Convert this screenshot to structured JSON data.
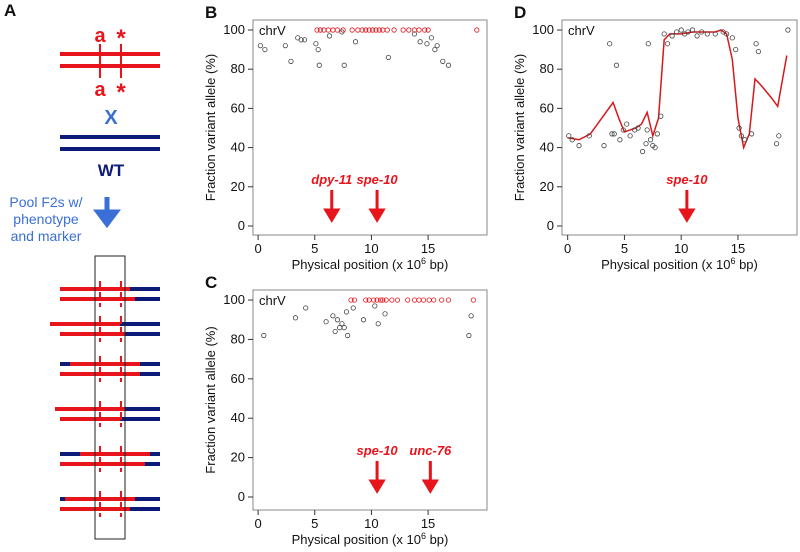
{
  "diagram": {
    "panel": "A",
    "top_labels": [
      "a",
      "*"
    ],
    "bottom_labels": [
      "a",
      "*"
    ],
    "cross": "X",
    "wt": "WT",
    "pool_lines": [
      "Pool F2s w/",
      "phenotype",
      "and marker"
    ]
  },
  "chart_data": [
    {
      "type": "scatter",
      "panel": "B",
      "chromosome": "chrV",
      "x_label": [
        "Physical position (x 10",
        "6",
        " bp)"
      ],
      "y_label": "Fraction variant allele (%)",
      "xlim": [
        -0.45,
        20.2
      ],
      "ylim": [
        -4.6,
        105.1
      ],
      "xticks": [
        0,
        5,
        10,
        15
      ],
      "yticks": [
        0,
        20,
        40,
        60,
        80,
        100
      ],
      "series": [
        {
          "color": "#e8141c",
          "x": [
            5.2,
            5.5,
            5.8,
            6.2,
            6.6,
            7.0,
            7.5,
            8.3,
            8.8,
            9.2,
            9.5,
            9.8,
            10.1,
            10.4,
            10.7,
            11.0,
            11.4,
            12.0,
            12.8,
            13.3,
            13.8,
            14.2,
            14.7,
            15.0,
            19.3
          ],
          "values": [
            100,
            100,
            100,
            100,
            100,
            100,
            100,
            100,
            100,
            100,
            100,
            100,
            100,
            100,
            100,
            100,
            100,
            100,
            100,
            100,
            100,
            100,
            100,
            100,
            100
          ]
        },
        {
          "color": "#444444",
          "x": [
            0.2,
            0.6,
            2.4,
            2.9,
            3.5,
            3.8,
            4.1,
            5.1,
            5.3,
            5.4,
            6.3,
            7.4,
            7.6,
            8.6,
            11.5,
            13.8,
            14.3,
            14.9,
            15.3,
            15.6,
            15.8,
            16.3,
            16.8
          ],
          "values": [
            92,
            90,
            92,
            84,
            96,
            95,
            95,
            93,
            90,
            82,
            97,
            99,
            82,
            94,
            86,
            98,
            94,
            93,
            96,
            90,
            92,
            84,
            82
          ]
        }
      ],
      "annotations": [
        {
          "label": "dpy-11",
          "x": 6.5
        },
        {
          "label": "spe-10",
          "x": 10.5
        }
      ]
    },
    {
      "type": "scatter",
      "panel": "C",
      "chromosome": "chrV",
      "x_label": [
        "Physical position (x 10",
        "6",
        " bp)"
      ],
      "y_label": "Fraction variant allele (%)",
      "xlim": [
        -0.45,
        20.2
      ],
      "ylim": [
        -6.6,
        105.1
      ],
      "xticks": [
        0,
        5,
        10,
        15
      ],
      "yticks": [
        0,
        20,
        40,
        60,
        80,
        100
      ],
      "series": [
        {
          "color": "#e8141c",
          "x": [
            8.2,
            8.5,
            9.5,
            9.8,
            10.2,
            10.5,
            10.8,
            11.0,
            11.3,
            11.8,
            12.3,
            13.2,
            13.8,
            14.2,
            14.6,
            15.1,
            15.5,
            16.2,
            16.8,
            19.0
          ],
          "values": [
            100,
            100,
            100,
            100,
            100,
            100,
            100,
            100,
            100,
            100,
            100,
            100,
            100,
            100,
            100,
            100,
            100,
            100,
            100,
            100
          ]
        },
        {
          "color": "#444444",
          "x": [
            0.5,
            3.3,
            4.2,
            6.0,
            6.6,
            6.8,
            7.0,
            7.2,
            7.4,
            7.6,
            7.8,
            7.9,
            8.4,
            10.3,
            10.6,
            9.3,
            11.2,
            18.6,
            18.8
          ],
          "values": [
            82,
            91,
            96,
            89,
            92,
            84,
            90,
            86,
            88,
            86,
            94,
            82,
            96,
            97,
            88,
            90,
            93,
            82,
            92
          ]
        }
      ],
      "annotations": [
        {
          "label": "spe-10",
          "x": 10.5
        },
        {
          "label": "unc-76",
          "x": 15.2
        }
      ]
    },
    {
      "type": "scatter",
      "panel": "D",
      "chromosome": "chrV",
      "x_label": [
        "Physical position (x 10",
        "6",
        " bp)"
      ],
      "y_label": "Fraction variant allele (%)",
      "xlim": [
        -0.5,
        20.2
      ],
      "ylim": [
        -4.6,
        105.1
      ],
      "xticks": [
        0,
        5,
        10,
        15
      ],
      "yticks": [
        0,
        20,
        40,
        60,
        80,
        100
      ],
      "series": [
        {
          "color": "#444444",
          "x": [
            0.1,
            0.4,
            1.0,
            1.9,
            3.2,
            3.7,
            3.9,
            4.1,
            4.3,
            4.6,
            4.9,
            5.2,
            5.5,
            5.9,
            6.2,
            6.6,
            6.9,
            7.0,
            7.1,
            7.3,
            7.5,
            7.7,
            7.9,
            8.2,
            8.5,
            8.8,
            9.2,
            9.6,
            10.0,
            10.3,
            10.6,
            11.0,
            11.4,
            11.8,
            12.3,
            13.0,
            13.7,
            14.0,
            14.5,
            14.8,
            15.1,
            15.3,
            15.6,
            16.2,
            16.6,
            16.8,
            18.4,
            18.6,
            19.4
          ],
          "values": [
            46,
            44,
            41,
            46,
            41,
            93,
            47,
            47,
            82,
            44,
            49,
            52,
            46,
            49,
            50,
            38,
            42,
            49,
            93,
            44,
            41,
            40,
            47,
            56,
            98,
            93,
            97,
            99,
            100,
            98,
            99,
            100,
            97,
            99,
            98,
            98,
            99,
            98,
            96,
            90,
            50,
            46,
            44,
            47,
            93,
            89,
            42,
            46,
            100
          ]
        }
      ],
      "fit": {
        "color": "#d7191c",
        "x": [
          0,
          1,
          2,
          3,
          4,
          4.5,
          5,
          5.5,
          6,
          6.5,
          7,
          7.5,
          8,
          8.5,
          9,
          10,
          11,
          12,
          13,
          13.5,
          14,
          14.5,
          15,
          15.5,
          16,
          16.5,
          17,
          18,
          18.5,
          19.3
        ],
        "values": [
          45,
          44,
          47,
          55,
          63,
          55,
          48,
          49,
          50,
          52,
          58,
          46,
          55,
          95,
          98,
          98,
          99,
          99,
          99,
          100,
          98,
          85,
          55,
          40,
          47,
          75,
          72,
          65,
          61,
          87
        ]
      },
      "annotations": [
        {
          "label": "spe-10",
          "x": 10.5
        }
      ]
    }
  ]
}
